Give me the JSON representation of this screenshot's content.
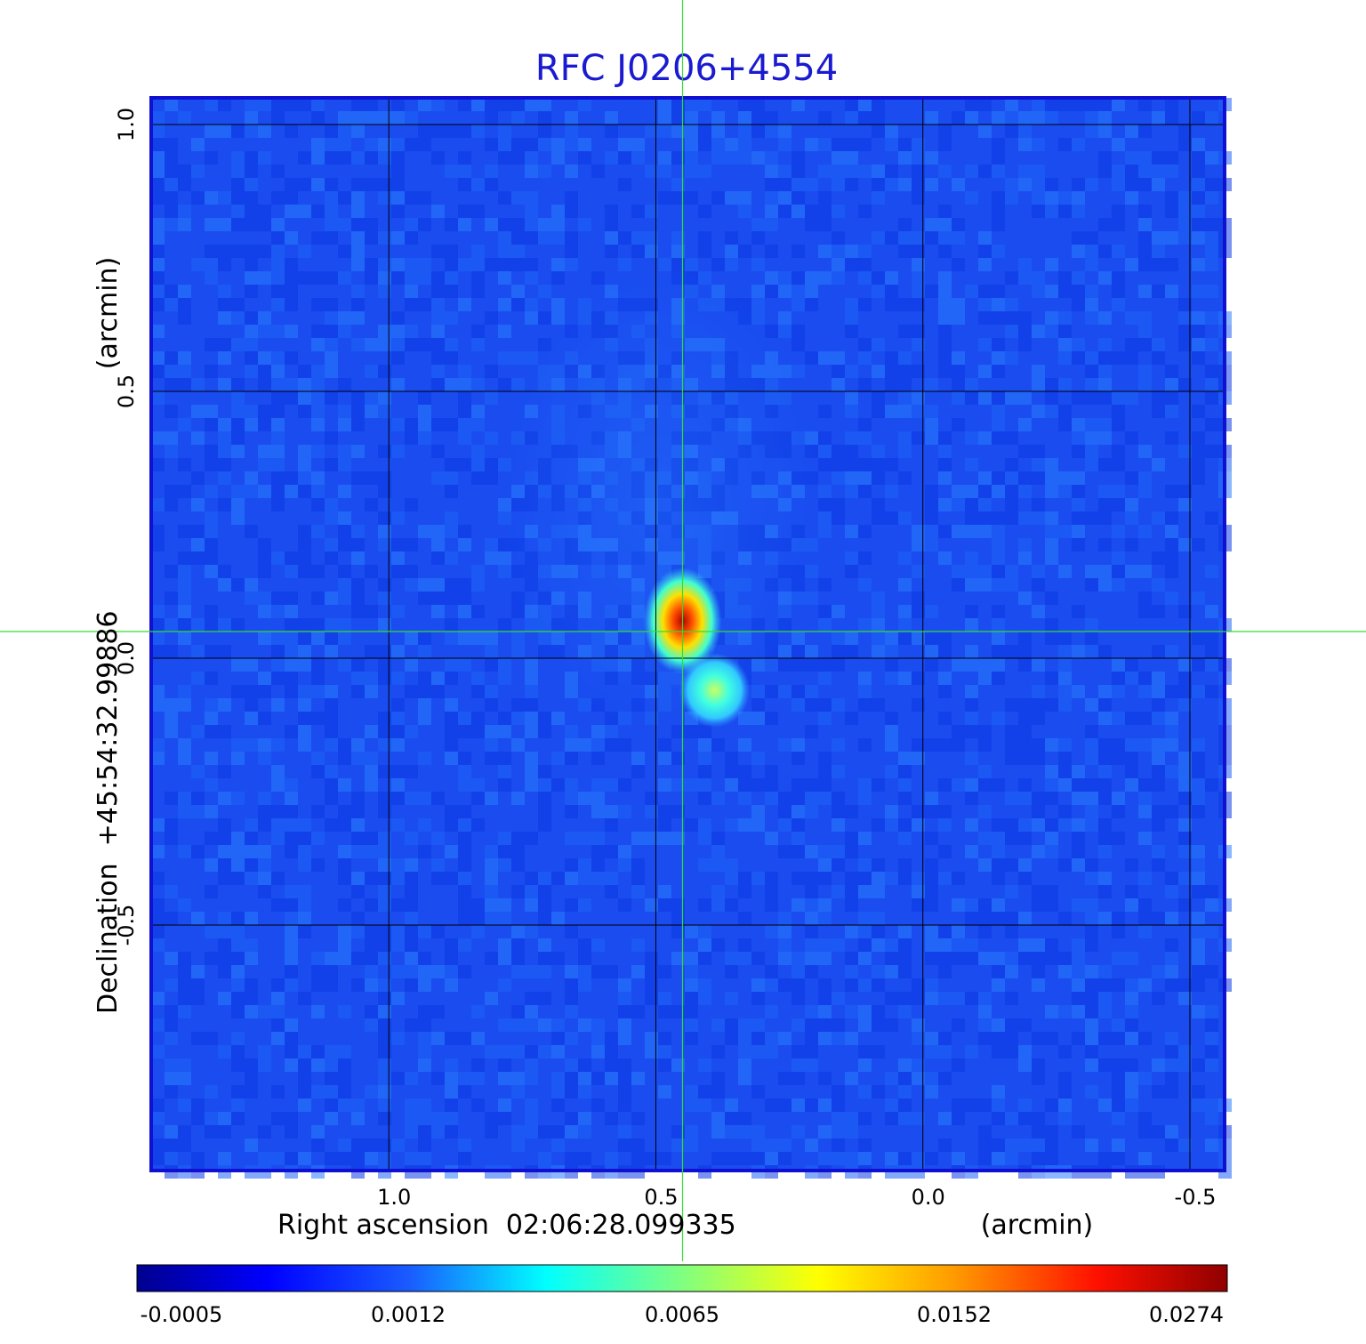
{
  "chart_data": {
    "type": "heatmap",
    "title": "RFC J0206+4554",
    "xlabel": "Right ascension  02:06:28.099335",
    "xunit": "(arcmin)",
    "ylabel": "Declination  +45:54:32.99886",
    "yunit": "(arcmin)",
    "x_ticks": [
      {
        "value": 1.0,
        "label": "1.0"
      },
      {
        "value": 0.5,
        "label": "0.5"
      },
      {
        "value": 0.0,
        "label": "0.0"
      },
      {
        "value": -0.5,
        "label": "-0.5"
      }
    ],
    "y_ticks": [
      {
        "value": 1.0,
        "label": "1.0"
      },
      {
        "value": 0.5,
        "label": "0.5"
      },
      {
        "value": 0.0,
        "label": "0.0"
      },
      {
        "value": -0.5,
        "label": "-0.5"
      }
    ],
    "xlim": [
      1.445,
      -0.565
    ],
    "ylim": [
      -0.96,
      1.05
    ],
    "grid": true,
    "crosshair": {
      "x": 0.45,
      "y": 0.05
    },
    "sources": [
      {
        "x": 0.45,
        "y": 0.07,
        "peak": 0.0274
      },
      {
        "x": 0.39,
        "y": -0.06,
        "peak": 0.0065
      }
    ],
    "colorbar": {
      "ticks": [
        "-0.0005",
        "0.0012",
        "0.0065",
        "0.0152",
        "0.0274"
      ],
      "colormap": "jet"
    },
    "colors": {
      "title": "#1a1ad0",
      "frame": "#1010d0",
      "grid": "#000000",
      "crosshair": "#33dd33",
      "background": "#1a4cf0"
    }
  }
}
